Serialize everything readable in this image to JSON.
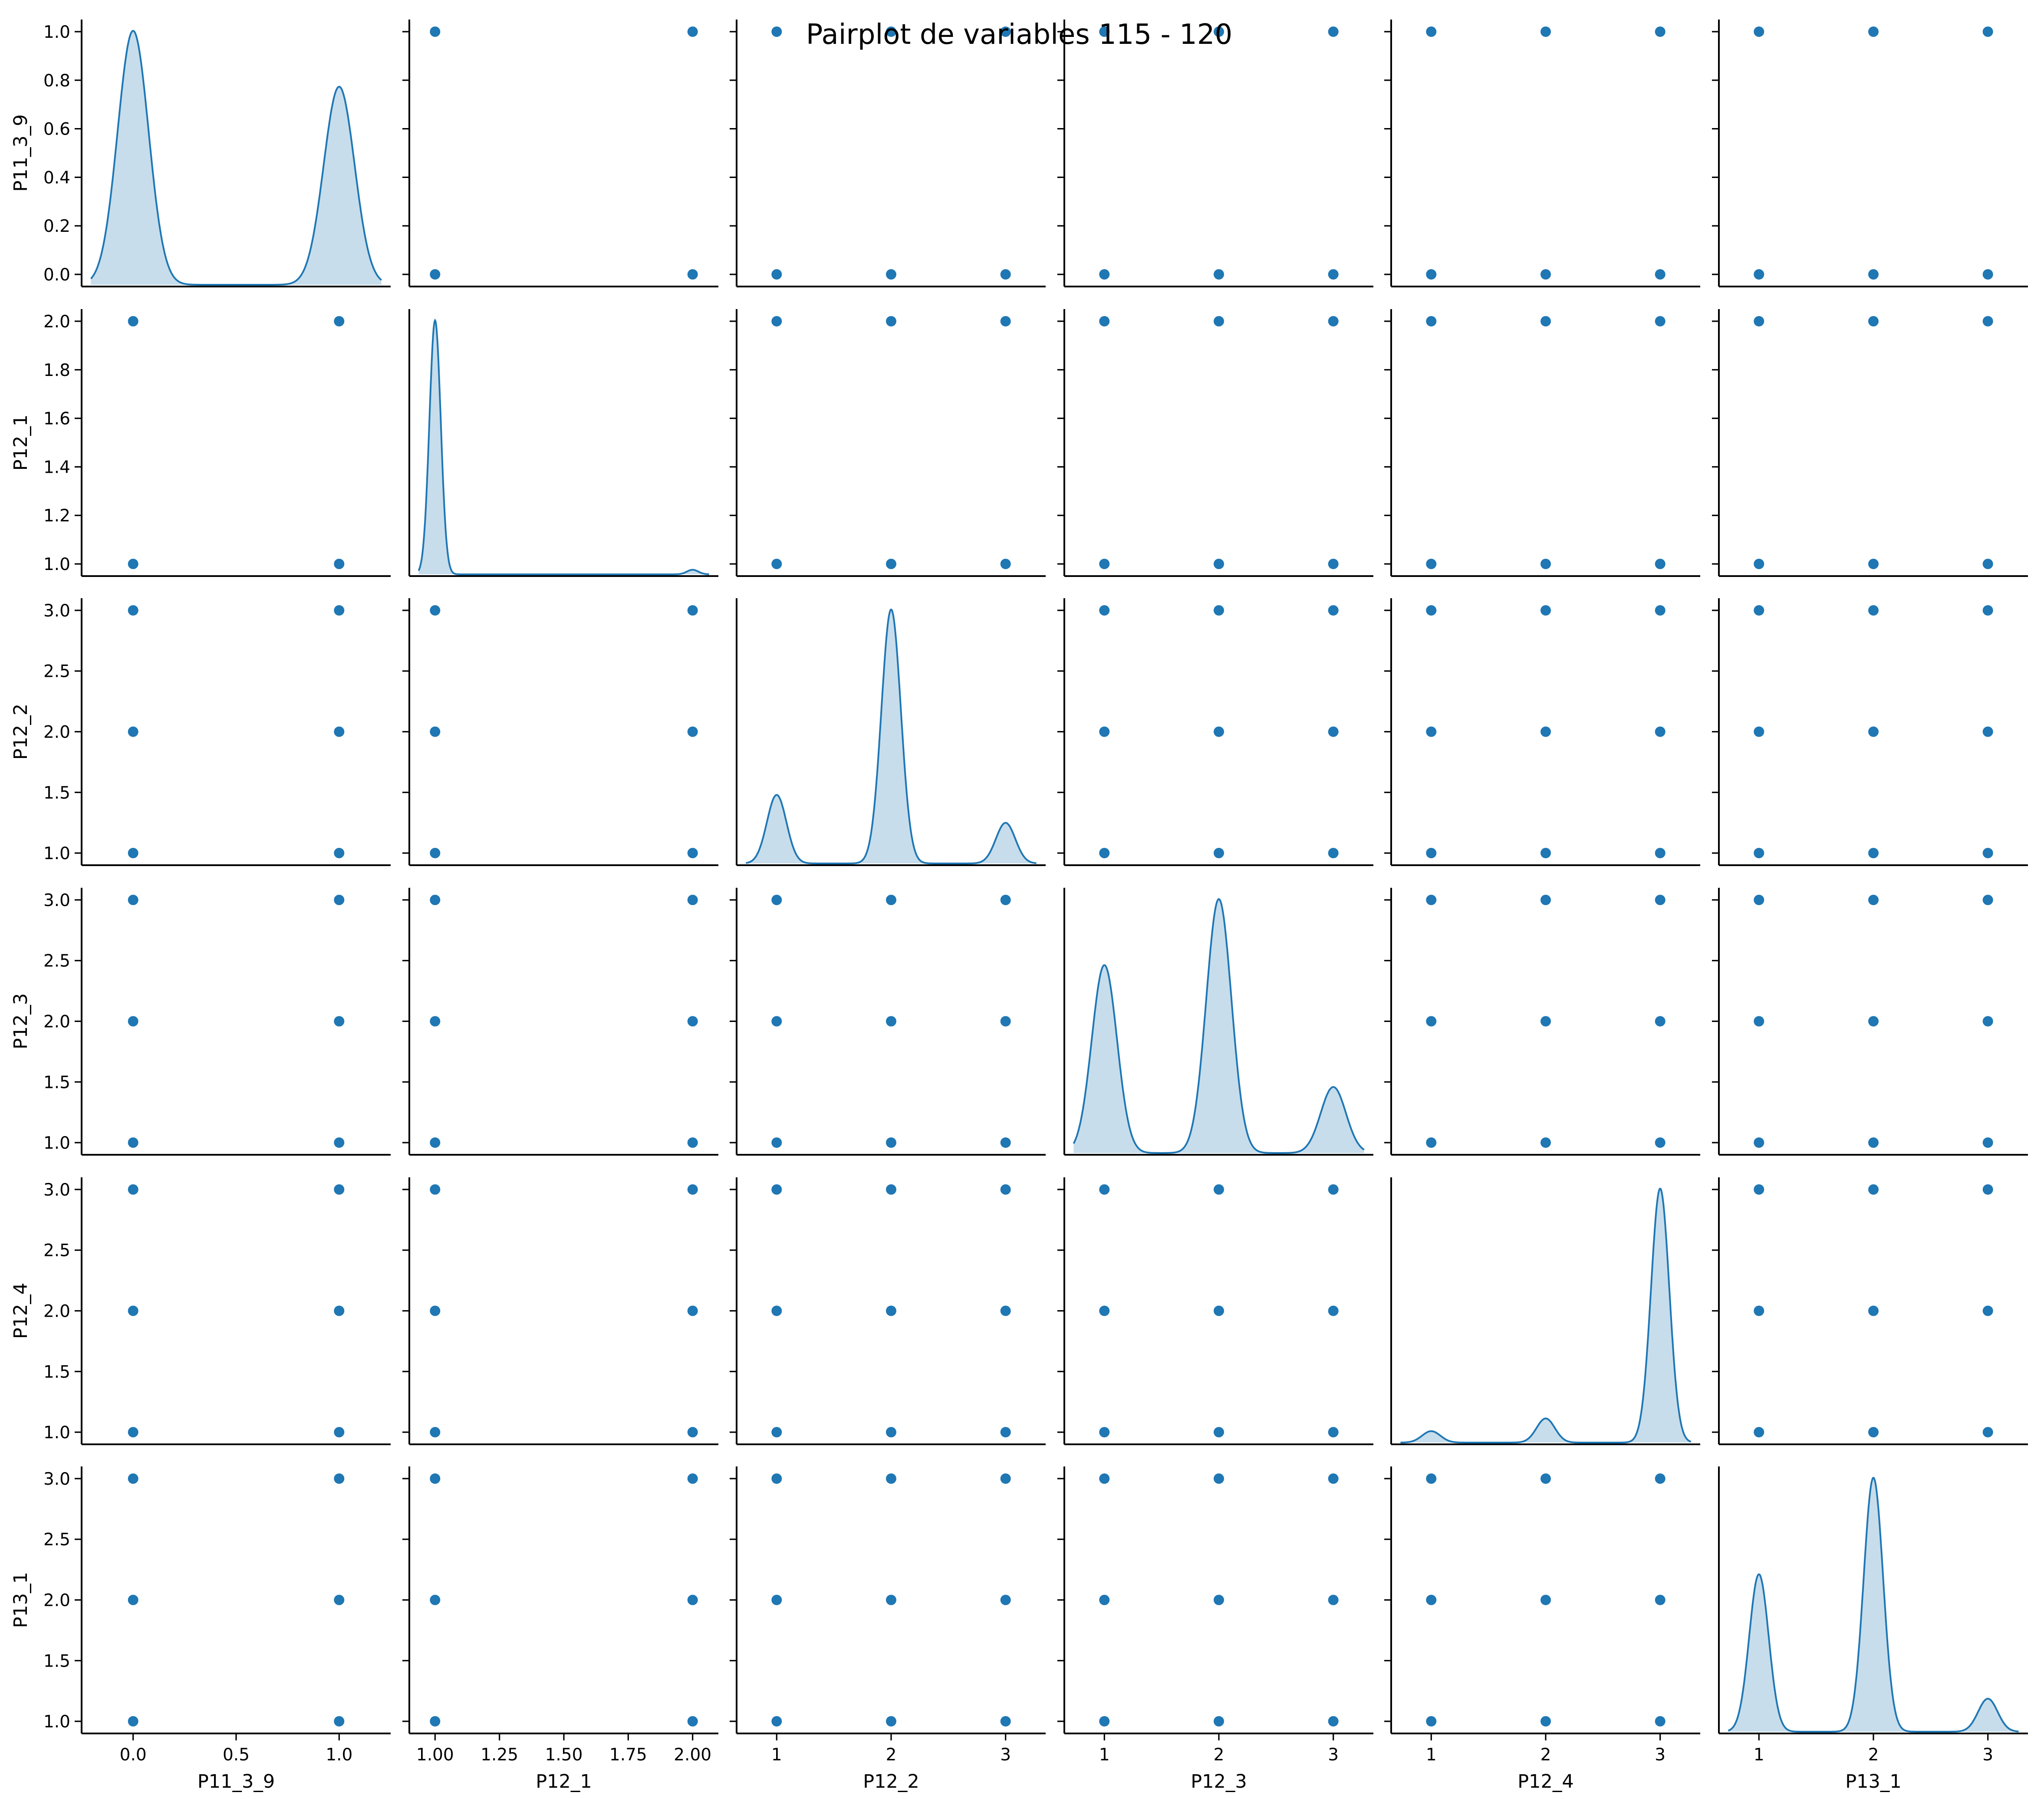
{
  "chart_data": {
    "type": "scatter",
    "title": "Pairplot de variables 115 - 120",
    "style": {
      "color": "#1f77b4",
      "fill": "#1f77b4",
      "fill_opacity": 0.25,
      "grid": false
    },
    "variables": [
      "P11_3_9",
      "P12_1",
      "P12_2",
      "P12_3",
      "P12_4",
      "P13_1"
    ],
    "axes": [
      {
        "name": "P11_3_9",
        "range": [
          -0.25,
          1.25
        ],
        "ticks": [
          0.0,
          0.5,
          1.0
        ],
        "tick_labels": [
          "0.0",
          "0.5",
          "1.0"
        ]
      },
      {
        "name": "P12_1",
        "range": [
          0.9,
          2.1
        ],
        "ticks": [
          1.0,
          1.25,
          1.5,
          1.75,
          2.0
        ],
        "tick_labels": [
          "1.00",
          "1.25",
          "1.50",
          "1.75",
          "2.00"
        ]
      },
      {
        "name": "P12_2",
        "range": [
          0.65,
          3.35
        ],
        "ticks": [
          1,
          2,
          3
        ],
        "tick_labels": [
          "1",
          "2",
          "3"
        ]
      },
      {
        "name": "P12_3",
        "range": [
          0.65,
          3.35
        ],
        "ticks": [
          1,
          2,
          3
        ],
        "tick_labels": [
          "1",
          "2",
          "3"
        ]
      },
      {
        "name": "P12_4",
        "range": [
          0.65,
          3.35
        ],
        "ticks": [
          1,
          2,
          3
        ],
        "tick_labels": [
          "1",
          "2",
          "3"
        ]
      },
      {
        "name": "P13_1",
        "range": [
          0.65,
          3.35
        ],
        "ticks": [
          1,
          2,
          3
        ],
        "tick_labels": [
          "1",
          "2",
          "3"
        ]
      }
    ],
    "row_axes": [
      {
        "name": "P11_3_9",
        "range": [
          -0.05,
          1.05
        ],
        "ticks": [
          0.0,
          0.2,
          0.4,
          0.6,
          0.8,
          1.0
        ],
        "tick_labels": [
          "0.0",
          "0.2",
          "0.4",
          "0.6",
          "0.8",
          "1.0"
        ]
      },
      {
        "name": "P12_1",
        "range": [
          0.95,
          2.05
        ],
        "ticks": [
          1.0,
          1.2,
          1.4,
          1.6,
          1.8,
          2.0
        ],
        "tick_labels": [
          "1.0",
          "1.2",
          "1.4",
          "1.6",
          "1.8",
          "2.0"
        ]
      },
      {
        "name": "P12_2",
        "range": [
          0.9,
          3.1
        ],
        "ticks": [
          1.0,
          1.5,
          2.0,
          2.5,
          3.0
        ],
        "tick_labels": [
          "1.0",
          "1.5",
          "2.0",
          "2.5",
          "3.0"
        ]
      },
      {
        "name": "P12_3",
        "range": [
          0.9,
          3.1
        ],
        "ticks": [
          1.0,
          1.5,
          2.0,
          2.5,
          3.0
        ],
        "tick_labels": [
          "1.0",
          "1.5",
          "2.0",
          "2.5",
          "3.0"
        ]
      },
      {
        "name": "P12_4",
        "range": [
          0.9,
          3.1
        ],
        "ticks": [
          1.0,
          1.5,
          2.0,
          2.5,
          3.0
        ],
        "tick_labels": [
          "1.0",
          "1.5",
          "2.0",
          "2.5",
          "3.0"
        ]
      },
      {
        "name": "P13_1",
        "range": [
          0.9,
          3.1
        ],
        "ticks": [
          1.0,
          1.5,
          2.0,
          2.5,
          3.0
        ],
        "tick_labels": [
          "1.0",
          "1.5",
          "2.0",
          "2.5",
          "3.0"
        ]
      }
    ],
    "categories": [
      [
        0,
        1
      ],
      [
        1,
        2
      ],
      [
        1,
        2,
        3
      ],
      [
        1,
        2,
        3
      ],
      [
        1,
        2,
        3
      ],
      [
        1,
        2,
        3
      ]
    ],
    "kde": [
      {
        "variable": "P11_3_9",
        "peaks": [
          {
            "x": 0,
            "height": 1.0
          },
          {
            "x": 1,
            "height": 0.78
          }
        ],
        "bandwidth": 0.075
      },
      {
        "variable": "P12_1",
        "peaks": [
          {
            "x": 1,
            "height": 1.0
          },
          {
            "x": 2,
            "height": 0.018
          }
        ],
        "bandwidth": 0.022
      },
      {
        "variable": "P12_2",
        "peaks": [
          {
            "x": 1,
            "height": 0.27
          },
          {
            "x": 2,
            "height": 1.0
          },
          {
            "x": 3,
            "height": 0.16
          }
        ],
        "bandwidth": 0.085
      },
      {
        "variable": "P12_3",
        "peaks": [
          {
            "x": 1,
            "height": 0.74
          },
          {
            "x": 2,
            "height": 1.0
          },
          {
            "x": 3,
            "height": 0.26
          }
        ],
        "bandwidth": 0.11
      },
      {
        "variable": "P12_4",
        "peaks": [
          {
            "x": 1,
            "height": 0.045
          },
          {
            "x": 2,
            "height": 0.095
          },
          {
            "x": 3,
            "height": 1.0
          }
        ],
        "bandwidth": 0.08
      },
      {
        "variable": "P13_1",
        "peaks": [
          {
            "x": 1,
            "height": 0.62
          },
          {
            "x": 2,
            "height": 1.0
          },
          {
            "x": 3,
            "height": 0.13
          }
        ],
        "bandwidth": 0.085
      }
    ]
  }
}
